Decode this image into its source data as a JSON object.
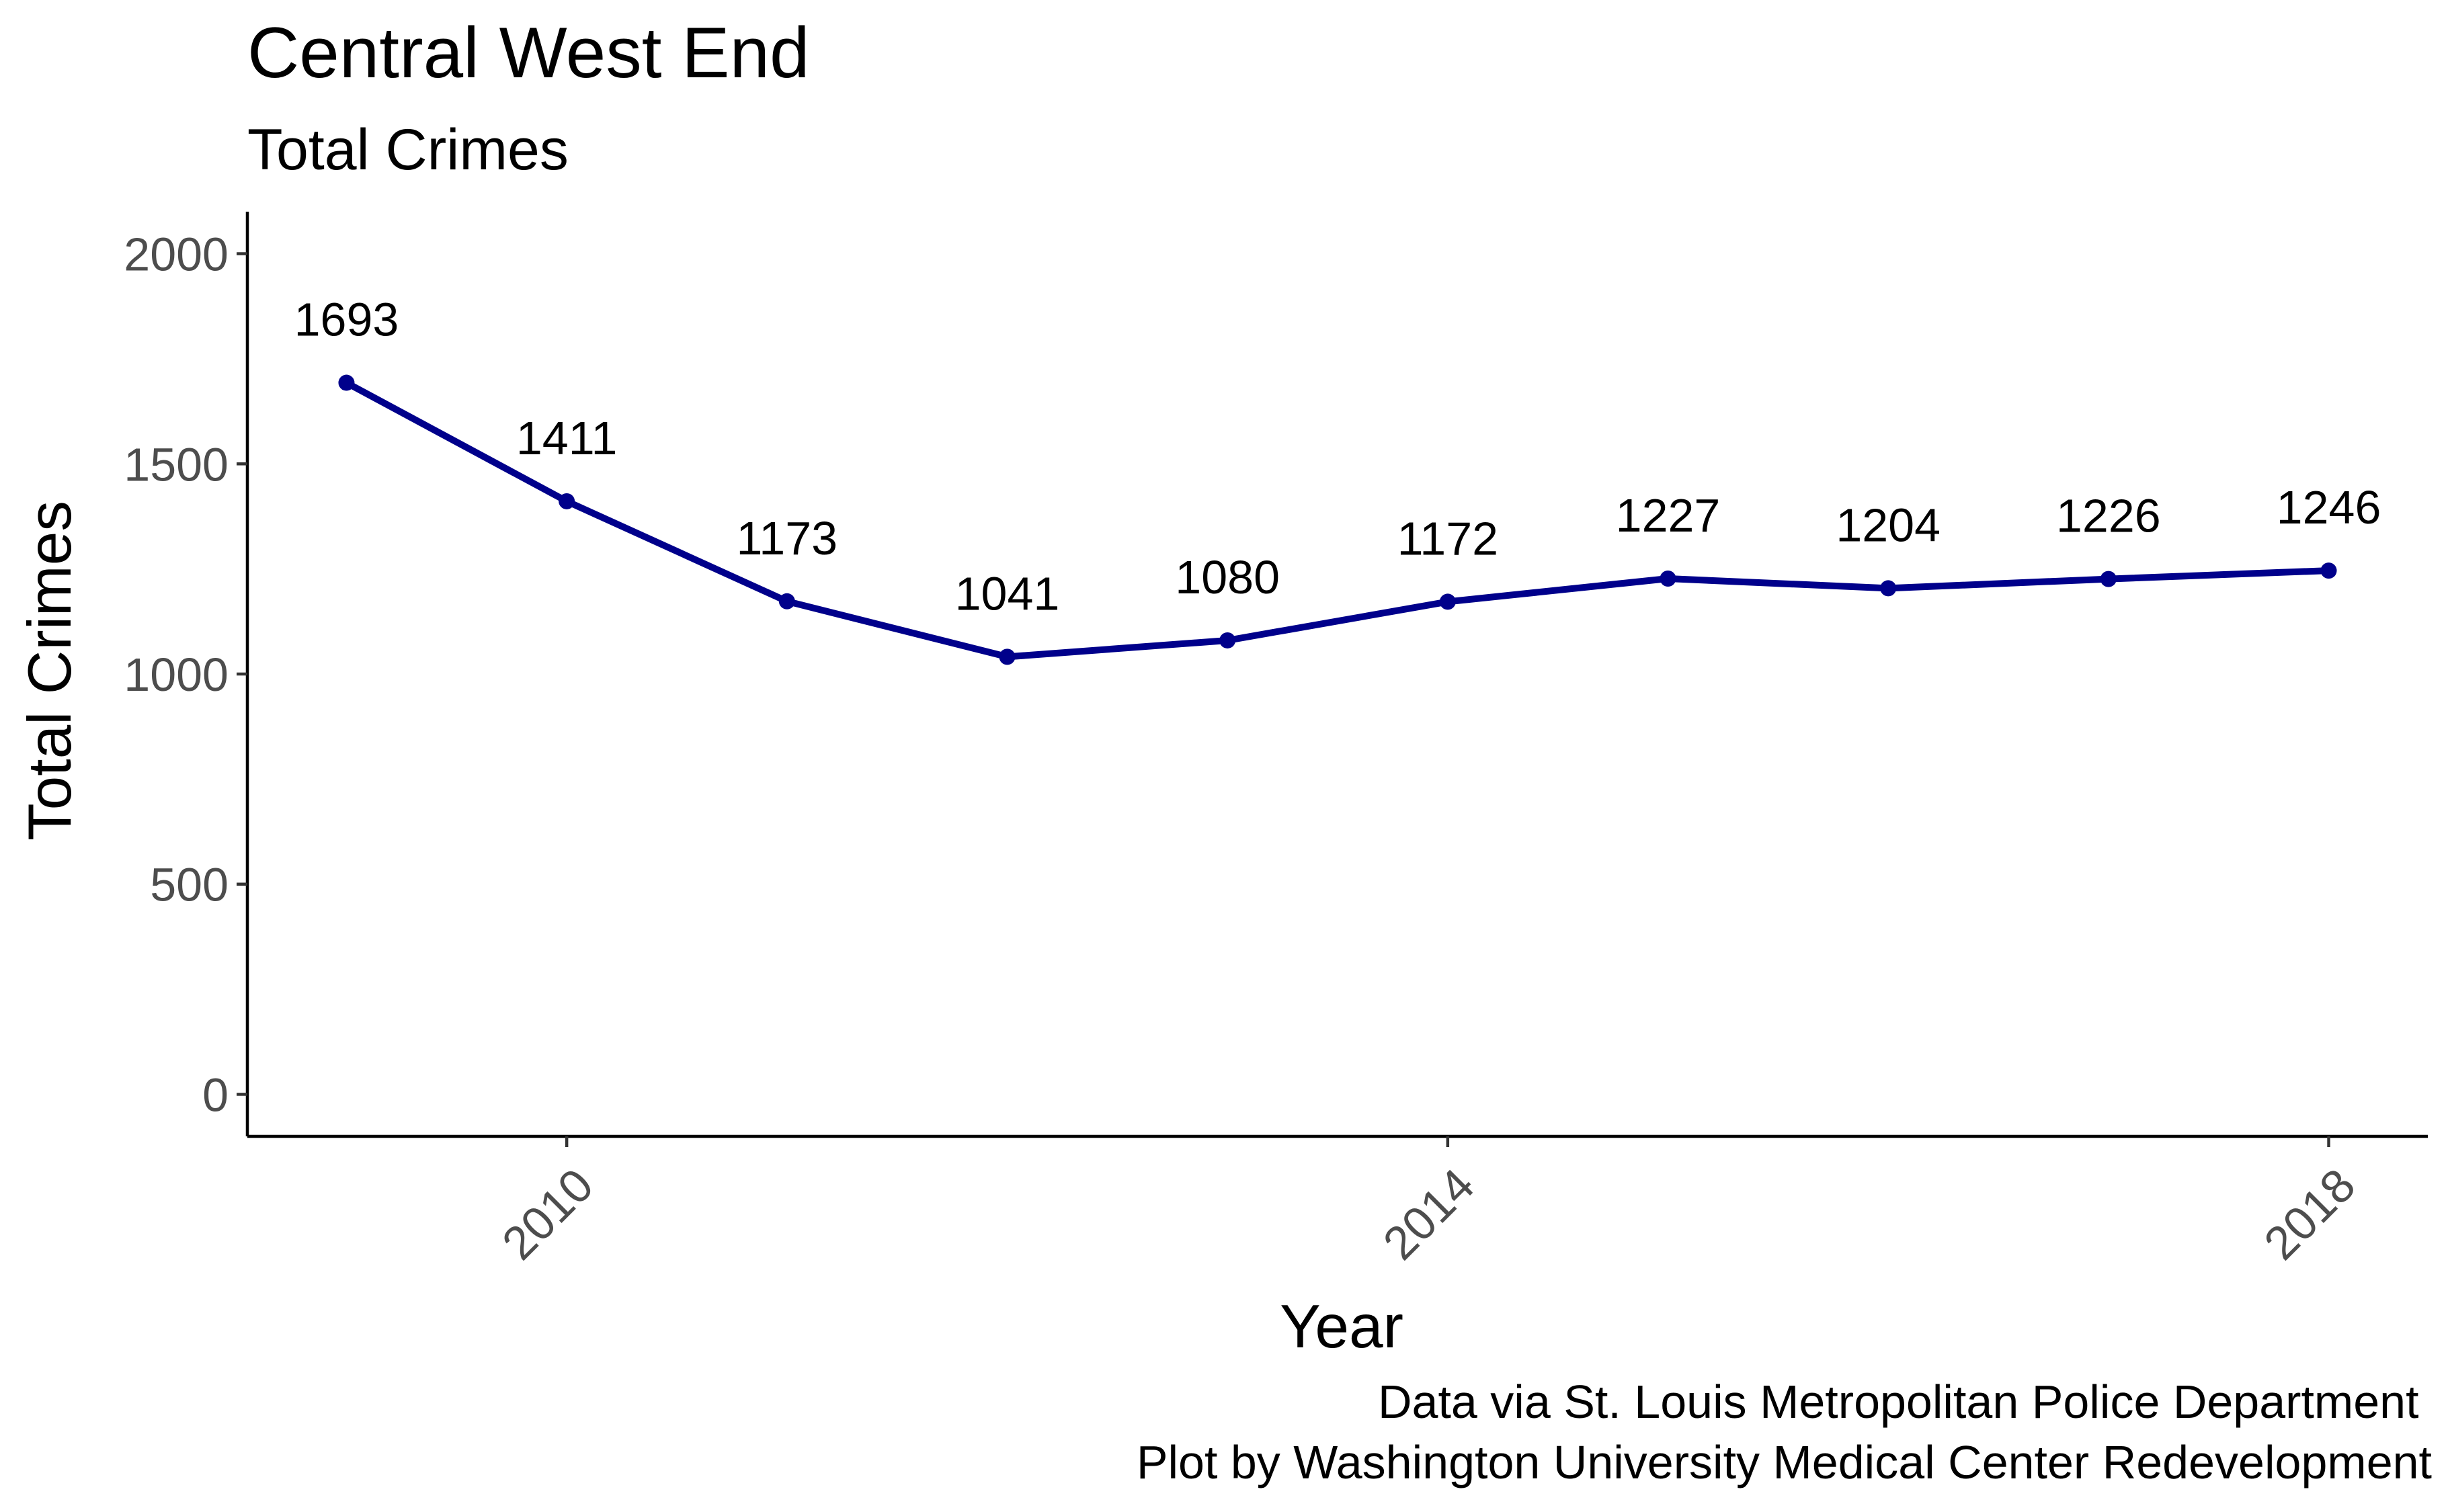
{
  "chart_data": {
    "type": "line",
    "title": "Central West End",
    "subtitle": "Total Crimes",
    "xlabel": "Year",
    "ylabel": "Total Crimes",
    "x": [
      2009,
      2010,
      2011,
      2012,
      2013,
      2014,
      2015,
      2016,
      2017,
      2018
    ],
    "series": [
      {
        "values": [
          1693,
          1411,
          1173,
          1041,
          1080,
          1172,
          1227,
          1204,
          1226,
          1246
        ],
        "color": "#00008b"
      }
    ],
    "data_labels": [
      "1693",
      "1411",
      "1173",
      "1041",
      "1080",
      "1172",
      "1227",
      "1204",
      "1226",
      "1246"
    ],
    "x_ticks": [
      2010,
      2014,
      2018
    ],
    "x_tick_labels": [
      "2010",
      "2014",
      "2018"
    ],
    "y_ticks": [
      0,
      500,
      1000,
      1500,
      2000
    ],
    "y_tick_labels": [
      "0",
      "500",
      "1000",
      "1500",
      "2000"
    ],
    "xlim": [
      2008.55,
      2018.45
    ],
    "ylim": [
      -100,
      2100
    ],
    "grid": false,
    "legend": "none",
    "caption": [
      "Data via St. Louis Metropolitan Police Department ",
      "Plot by Washington University Medical Center Redevelopment"
    ]
  }
}
